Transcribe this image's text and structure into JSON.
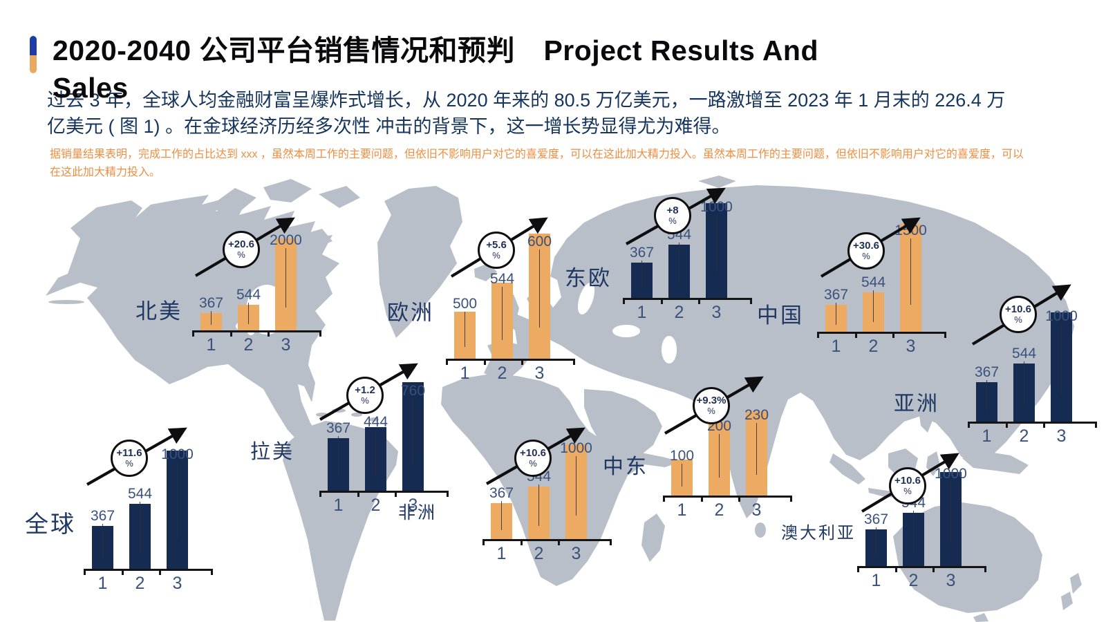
{
  "page": {
    "title_line1": "2020-2040 公司平台销售情况和预判　Project Results And",
    "title_line2": "Sales",
    "intro": "过去 3 年，全球人均金融财富呈爆炸式增长，从  2020 年来的 80.5 万亿美元，一路激增至 2023 年 1 月末的  226.4 万亿美元 ( 图 1) 。在金球经济历经多次性  冲击的背景下，这一增长势显得尤为难得。",
    "note": "据销量结果表明，完成工作的占比达到 xxx ，虽然本周工作的主要问题，但依旧不影响用户对它的喜爱度，可以在这此加大精力投入。虽然本周工作的主要问题，但依旧不影响用户对它的喜爱度，可以在这此加大精力投入。"
  },
  "colors": {
    "navy_bar": "#162b52",
    "orange_bar": "#ecaa63",
    "map_land": "#b9bfc9",
    "label_navy": "#1f3864",
    "value_navy": "#39517b",
    "note_orange": "#ef8d40",
    "accent_blue": "#1e3ca8",
    "accent_orange": "#eaa960"
  },
  "chart_data": [
    {
      "id": "global",
      "type": "bar",
      "region": "全球",
      "growth_label": "+11.6",
      "growth_unit": "%",
      "categories": [
        "1",
        "2",
        "3"
      ],
      "values": [
        367,
        544,
        1000
      ],
      "bar_color": "navy"
    },
    {
      "id": "north-america",
      "type": "bar",
      "region": "北美",
      "growth_label": "+20.6",
      "growth_unit": "%",
      "categories": [
        "1",
        "2",
        "3"
      ],
      "values": [
        367,
        544,
        2000
      ],
      "bar_color": "orange"
    },
    {
      "id": "europe",
      "type": "bar",
      "region": "欧洲",
      "growth_label": "+5.6",
      "growth_unit": "%",
      "categories": [
        "1",
        "2",
        "3"
      ],
      "values": [
        500,
        544,
        600
      ],
      "bar_color": "orange"
    },
    {
      "id": "eastern-europe",
      "type": "bar",
      "region": "东欧",
      "growth_label": "+8",
      "growth_unit": "%",
      "categories": [
        "1",
        "2",
        "3"
      ],
      "values": [
        367,
        544,
        1000
      ],
      "bar_color": "navy"
    },
    {
      "id": "china",
      "type": "bar",
      "region": "中国",
      "growth_label": "+30.6",
      "growth_unit": "%",
      "categories": [
        "1",
        "2",
        "3"
      ],
      "values": [
        367,
        544,
        1500
      ],
      "bar_color": "orange"
    },
    {
      "id": "asia",
      "type": "bar",
      "region": "亚洲",
      "growth_label": "+10.6",
      "growth_unit": "%",
      "categories": [
        "1",
        "2",
        "3"
      ],
      "values": [
        367,
        544,
        1000
      ],
      "bar_color": "navy"
    },
    {
      "id": "latin-america",
      "type": "bar",
      "region": "拉美",
      "growth_label": "+1.2",
      "growth_unit": "%",
      "categories": [
        "1",
        "2",
        "3"
      ],
      "values": [
        367,
        444,
        760
      ],
      "bar_color": "navy"
    },
    {
      "id": "africa",
      "type": "bar",
      "region": "非洲",
      "growth_label": "+10.6",
      "growth_unit": "%",
      "categories": [
        "1",
        "2",
        "3"
      ],
      "values": [
        367,
        544,
        1000
      ],
      "bar_color": "orange"
    },
    {
      "id": "middle-east",
      "type": "bar",
      "region": "中东",
      "growth_label": "+9.3%",
      "growth_unit": "%",
      "categories": [
        "1",
        "2",
        "3"
      ],
      "values": [
        100,
        200,
        230
      ],
      "bar_color": "orange"
    },
    {
      "id": "australia",
      "type": "bar",
      "region": "澳大利亚",
      "growth_label": "+10.6",
      "growth_unit": "%",
      "categories": [
        "1",
        "2",
        "3"
      ],
      "values": [
        367,
        544,
        1000
      ],
      "bar_color": "navy"
    }
  ]
}
